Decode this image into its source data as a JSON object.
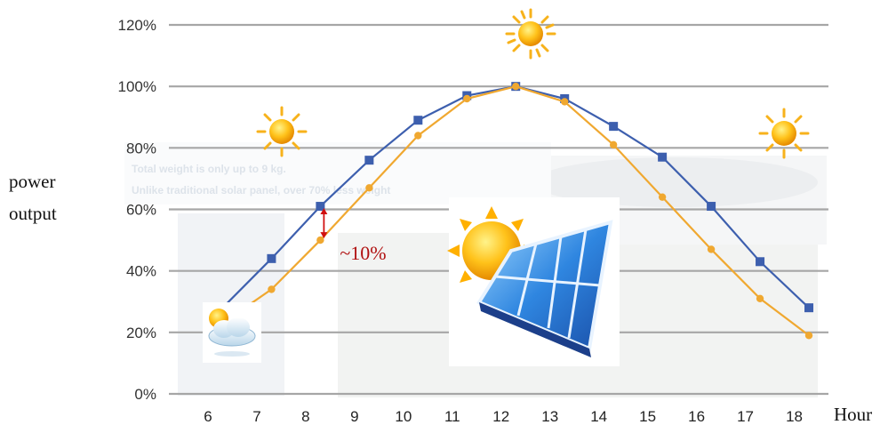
{
  "chart_data": {
    "type": "line",
    "title": "",
    "xlabel": "Hour",
    "ylabel": "power output",
    "x": [
      6,
      7,
      8,
      9,
      10,
      11,
      12,
      13,
      14,
      15,
      16,
      17,
      18
    ],
    "xlim": [
      5.2,
      18.7
    ],
    "ylim": [
      0,
      120
    ],
    "yticks": [
      0,
      20,
      40,
      60,
      80,
      100,
      120
    ],
    "ytick_format": "%",
    "grid": "horizontal",
    "series": [
      {
        "color": "#3d5fae",
        "marker": "square",
        "x": [
          6.3,
          7.3,
          8.3,
          9.3,
          10.3,
          11.3,
          12.3,
          13.3,
          14.3,
          15.3,
          16.3,
          17.3,
          18.3
        ],
        "values": [
          28,
          44,
          61,
          76,
          89,
          97,
          100,
          96,
          87,
          77,
          61,
          43,
          28
        ]
      },
      {
        "color": "#f0a830",
        "marker": "circle",
        "x": [
          6.3,
          7.3,
          8.3,
          9.3,
          10.3,
          11.3,
          12.3,
          13.3,
          14.3,
          15.3,
          16.3,
          17.3,
          18.3
        ],
        "values": [
          23,
          34,
          50,
          67,
          84,
          96,
          100,
          95,
          81,
          64,
          47,
          31,
          19
        ]
      }
    ],
    "annotations": [
      {
        "text": "~10%",
        "x": 8.3,
        "y_from": 50,
        "y_to": 61
      }
    ]
  },
  "background_text": {
    "line1": "Total weight is only up to 9 kg.",
    "line2": "Unlike traditional solar panel, over 70% less weight"
  },
  "icons": [
    "sun-icon",
    "sun-icon",
    "sun-icon",
    "cloudy-weather-icon",
    "solar-panel-icon"
  ]
}
